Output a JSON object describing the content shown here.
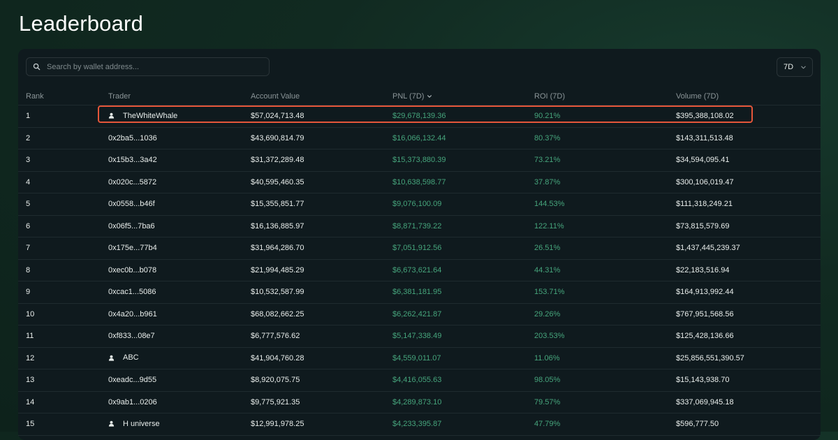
{
  "title": "Leaderboard",
  "search": {
    "placeholder": "Search by wallet address..."
  },
  "period_select": {
    "value": "7D"
  },
  "columns": [
    "Rank",
    "Trader",
    "Account Value",
    "PNL (7D)",
    "ROI (7D)",
    "Volume (7D)"
  ],
  "rows": [
    {
      "rank": "1",
      "trader": "TheWhiteWhale",
      "named": true,
      "account_value": "$57,024,713.48",
      "pnl": "$29,678,139.36",
      "roi": "90.21%",
      "volume": "$395,388,108.02"
    },
    {
      "rank": "2",
      "trader": "0x2ba5...1036",
      "named": false,
      "account_value": "$43,690,814.79",
      "pnl": "$16,066,132.44",
      "roi": "80.37%",
      "volume": "$143,311,513.48"
    },
    {
      "rank": "3",
      "trader": "0x15b3...3a42",
      "named": false,
      "account_value": "$31,372,289.48",
      "pnl": "$15,373,880.39",
      "roi": "73.21%",
      "volume": "$34,594,095.41"
    },
    {
      "rank": "4",
      "trader": "0x020c...5872",
      "named": false,
      "account_value": "$40,595,460.35",
      "pnl": "$10,638,598.77",
      "roi": "37.87%",
      "volume": "$300,106,019.47"
    },
    {
      "rank": "5",
      "trader": "0x0558...b46f",
      "named": false,
      "account_value": "$15,355,851.77",
      "pnl": "$9,076,100.09",
      "roi": "144.53%",
      "volume": "$111,318,249.21"
    },
    {
      "rank": "6",
      "trader": "0x06f5...7ba6",
      "named": false,
      "account_value": "$16,136,885.97",
      "pnl": "$8,871,739.22",
      "roi": "122.11%",
      "volume": "$73,815,579.69"
    },
    {
      "rank": "7",
      "trader": "0x175e...77b4",
      "named": false,
      "account_value": "$31,964,286.70",
      "pnl": "$7,051,912.56",
      "roi": "26.51%",
      "volume": "$1,437,445,239.37"
    },
    {
      "rank": "8",
      "trader": "0xec0b...b078",
      "named": false,
      "account_value": "$21,994,485.29",
      "pnl": "$6,673,621.64",
      "roi": "44.31%",
      "volume": "$22,183,516.94"
    },
    {
      "rank": "9",
      "trader": "0xcac1...5086",
      "named": false,
      "account_value": "$10,532,587.99",
      "pnl": "$6,381,181.95",
      "roi": "153.71%",
      "volume": "$164,913,992.44"
    },
    {
      "rank": "10",
      "trader": "0x4a20...b961",
      "named": false,
      "account_value": "$68,082,662.25",
      "pnl": "$6,262,421.87",
      "roi": "29.26%",
      "volume": "$767,951,568.56"
    },
    {
      "rank": "11",
      "trader": "0xf833...08e7",
      "named": false,
      "account_value": "$6,777,576.62",
      "pnl": "$5,147,338.49",
      "roi": "203.53%",
      "volume": "$125,428,136.66"
    },
    {
      "rank": "12",
      "trader": "ABC",
      "named": true,
      "account_value": "$41,904,760.28",
      "pnl": "$4,559,011.07",
      "roi": "11.06%",
      "volume": "$25,856,551,390.57"
    },
    {
      "rank": "13",
      "trader": "0xeadc...9d55",
      "named": false,
      "account_value": "$8,920,075.75",
      "pnl": "$4,416,055.63",
      "roi": "98.05%",
      "volume": "$15,143,938.70"
    },
    {
      "rank": "14",
      "trader": "0x9ab1...0206",
      "named": false,
      "account_value": "$9,775,921.35",
      "pnl": "$4,289,873.10",
      "roi": "79.57%",
      "volume": "$337,069,945.18"
    },
    {
      "rank": "15",
      "trader": "H universe",
      "named": true,
      "account_value": "$12,991,978.25",
      "pnl": "$4,233,395.87",
      "roi": "47.79%",
      "volume": "$596,777.50"
    }
  ],
  "highlighted_rank": "1",
  "colors": {
    "positive": "#46a57c",
    "highlight_border": "#e5563a"
  },
  "icons": {
    "search": "search-icon",
    "dropdown": "chevron-down-icon",
    "sort": "chevron-down-icon",
    "user": "user-icon"
  }
}
